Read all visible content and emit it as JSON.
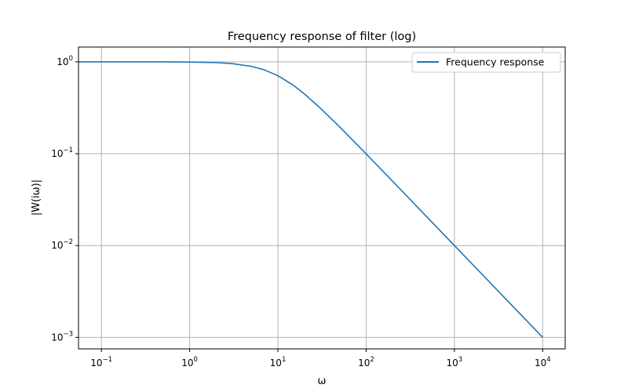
{
  "chart_data": {
    "type": "line",
    "title": "Frequency response of filter (log)",
    "xlabel": "ω",
    "ylabel": "|W(iω)|",
    "xscale": "log",
    "yscale": "log",
    "xlim": [
      0.055,
      18000
    ],
    "ylim": [
      0.00075,
      1.45
    ],
    "grid": true,
    "legend_position": "top-right",
    "x_ticks": [
      {
        "value": 0.1,
        "label": "10",
        "exp": "−1"
      },
      {
        "value": 1,
        "label": "10",
        "exp": "0"
      },
      {
        "value": 10,
        "label": "10",
        "exp": "1"
      },
      {
        "value": 100,
        "label": "10",
        "exp": "2"
      },
      {
        "value": 1000,
        "label": "10",
        "exp": "3"
      },
      {
        "value": 10000,
        "label": "10",
        "exp": "4"
      }
    ],
    "y_ticks": [
      {
        "value": 1,
        "label": "10",
        "exp": "0"
      },
      {
        "value": 0.1,
        "label": "10",
        "exp": "−1"
      },
      {
        "value": 0.01,
        "label": "10",
        "exp": "−2"
      },
      {
        "value": 0.001,
        "label": "10",
        "exp": "−3"
      }
    ],
    "series": [
      {
        "name": "Frequency response",
        "color": "#1f77b4",
        "x": [
          0.055,
          0.1,
          0.2,
          0.5,
          1,
          2,
          3,
          5,
          7,
          10,
          15,
          20,
          30,
          50,
          70,
          100,
          200,
          500,
          1000,
          2000,
          5000,
          10000
        ],
        "y": [
          1.0,
          1.0,
          1.0,
          0.999,
          0.995,
          0.981,
          0.958,
          0.894,
          0.819,
          0.707,
          0.555,
          0.447,
          0.316,
          0.196,
          0.141,
          0.0995,
          0.05,
          0.02,
          0.01,
          0.005,
          0.002,
          0.001
        ]
      }
    ]
  }
}
